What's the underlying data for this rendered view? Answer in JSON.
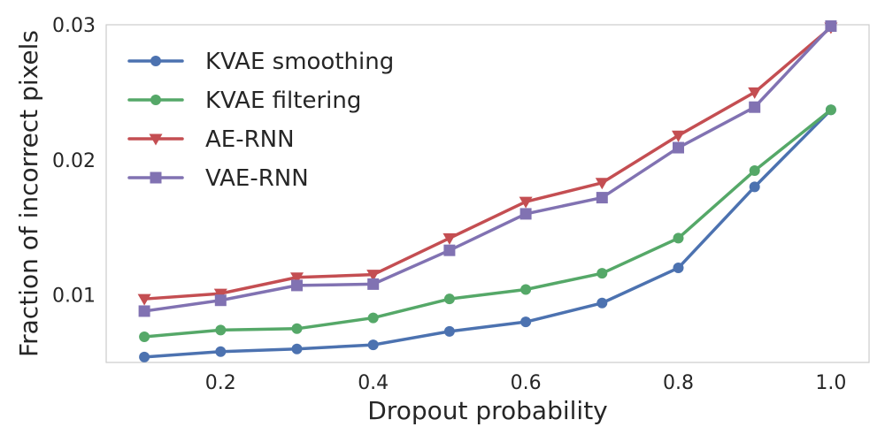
{
  "chart_data": {
    "type": "line",
    "title": "",
    "xlabel": "Dropout probability",
    "ylabel": "Fraction of incorrect pixels",
    "x": [
      0.1,
      0.2,
      0.3,
      0.4,
      0.5,
      0.6,
      0.7,
      0.8,
      0.9,
      1.0
    ],
    "xlim": [
      0.05,
      1.05
    ],
    "ylim": [
      0.005,
      0.03
    ],
    "xticks": [
      0.2,
      0.4,
      0.6,
      0.8,
      1.0
    ],
    "xtick_labels": [
      "0.2",
      "0.4",
      "0.6",
      "0.8",
      "1.0"
    ],
    "yticks": [
      0.01,
      0.02,
      0.03
    ],
    "ytick_labels": [
      "0.01",
      "0.02",
      "0.03"
    ],
    "grid": false,
    "legend_position": "top-left",
    "series": [
      {
        "name": "KVAE smoothing",
        "color": "#4C72B0",
        "marker": "circle",
        "values": [
          0.0054,
          0.0058,
          0.006,
          0.0063,
          0.0073,
          0.008,
          0.0094,
          0.012,
          0.018,
          0.0237
        ]
      },
      {
        "name": "KVAE filtering",
        "color": "#55A868",
        "marker": "circle",
        "values": [
          0.0069,
          0.0074,
          0.0075,
          0.0083,
          0.0097,
          0.0104,
          0.0116,
          0.0142,
          0.0192,
          0.0237
        ]
      },
      {
        "name": "AE-RNN",
        "color": "#C44E52",
        "marker": "triangle-down",
        "values": [
          0.0097,
          0.0101,
          0.0113,
          0.0115,
          0.0142,
          0.0169,
          0.0183,
          0.0218,
          0.025,
          0.0298
        ]
      },
      {
        "name": "VAE-RNN",
        "color": "#8172B2",
        "marker": "square",
        "values": [
          0.0088,
          0.0096,
          0.0107,
          0.0108,
          0.0133,
          0.016,
          0.0172,
          0.0209,
          0.0239,
          0.0299
        ]
      }
    ]
  }
}
